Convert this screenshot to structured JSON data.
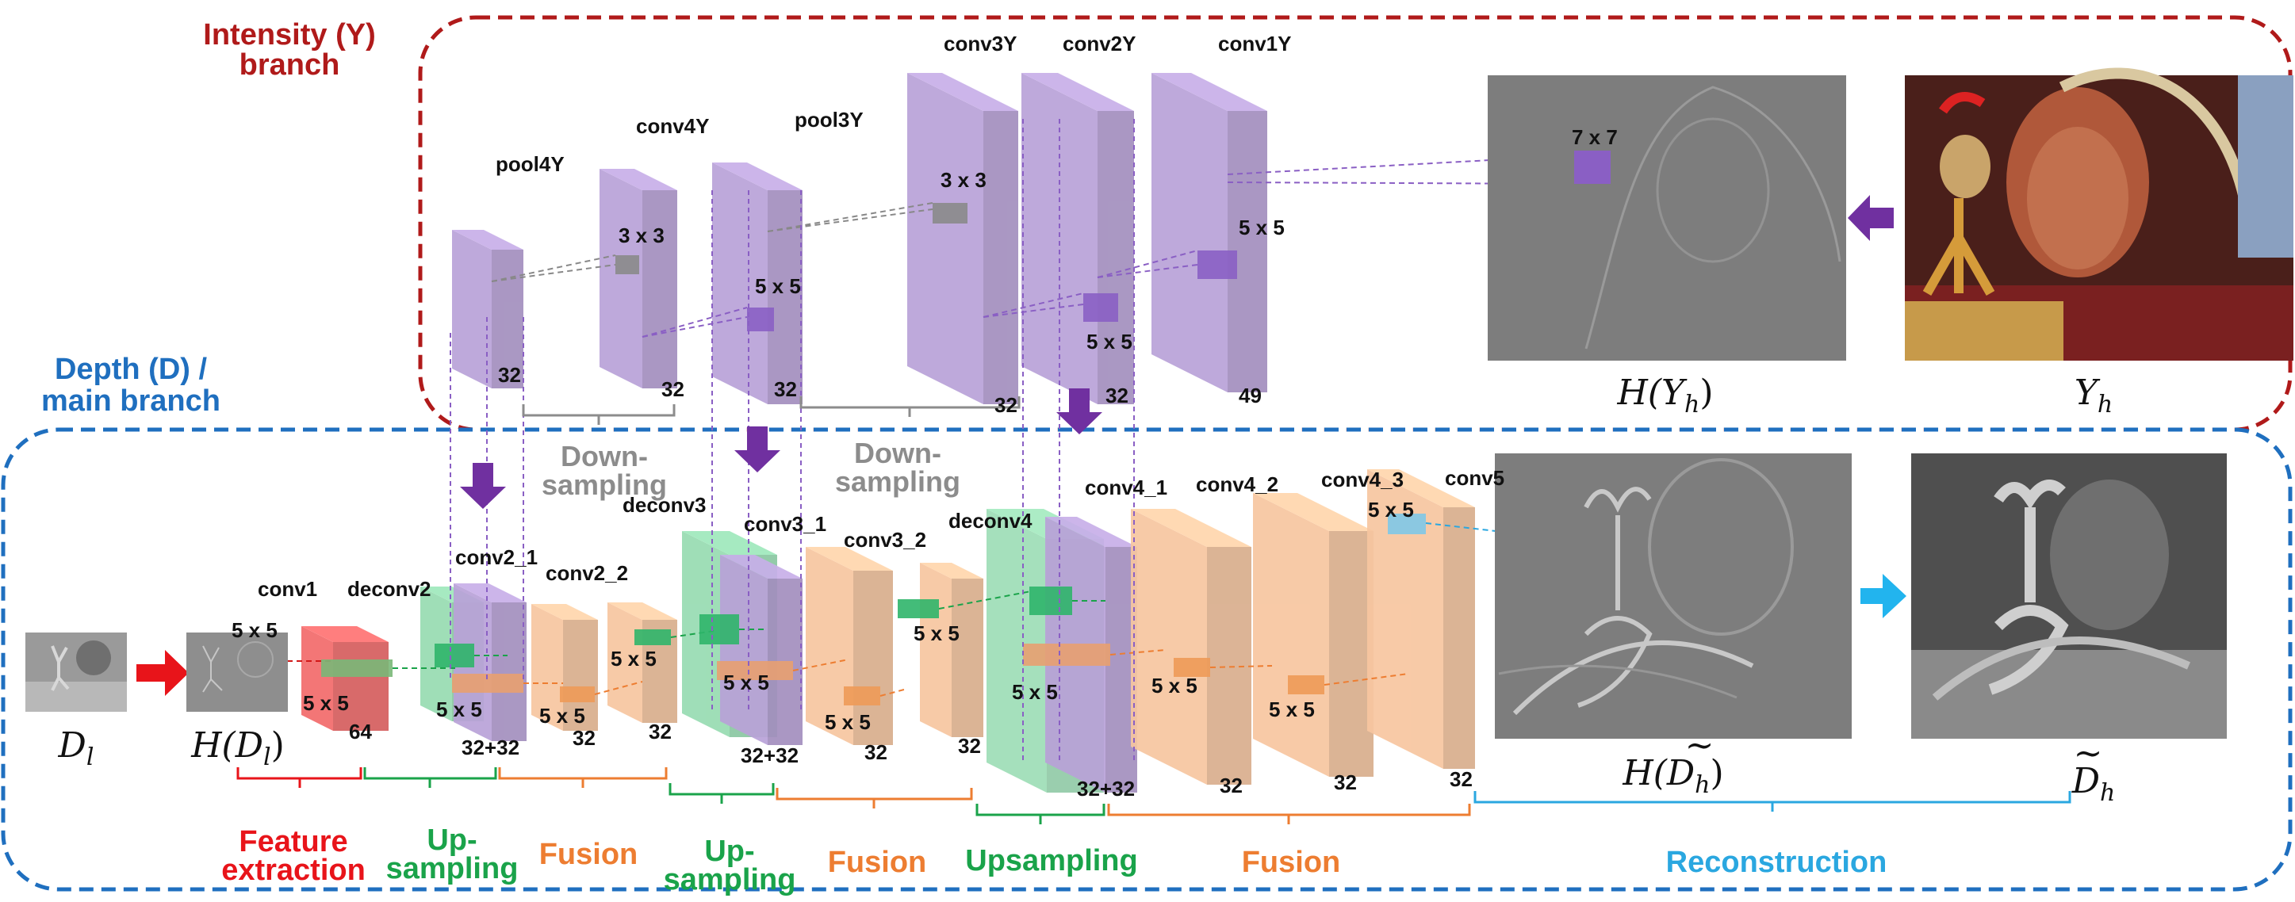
{
  "branches": {
    "intensity": [
      "Intensity (Y)",
      "branch"
    ],
    "depth": [
      "Depth (D) /",
      "main branch"
    ]
  },
  "colors": {
    "red_branch": "#b01a1a",
    "blue_branch": "#1f6fbf",
    "purple": "#b9a2d8",
    "orange": "#f7c6a0",
    "green": "#7fd3a0",
    "red_block": "#f26b6b",
    "cyan": "#5fc0e8",
    "feature_text": "#e8141a",
    "upsampling_text": "#1aa34a",
    "fusion_text": "#ed7d31",
    "reconstruction_text": "#2aa7e0",
    "downsampling_text": "#8c8c8c"
  },
  "layers": {
    "pool4Y": "pool4Y",
    "conv4Y": "conv4Y",
    "pool3Y": "pool3Y",
    "conv3Y": "conv3Y",
    "conv2Y": "conv2Y",
    "conv1Y": "conv1Y",
    "conv1": "conv1",
    "deconv2": "deconv2",
    "conv2_1": "conv2_1",
    "conv2_2": "conv2_2",
    "deconv3": "deconv3",
    "conv3_1": "conv3_1",
    "conv3_2": "conv3_2",
    "deconv4": "deconv4",
    "conv4_1": "conv4_1",
    "conv4_2": "conv4_2",
    "conv4_3": "conv4_3",
    "conv5": "conv5"
  },
  "kernels": {
    "k7": "7 x 7",
    "k5": "5 x 5",
    "k3": "3 x 3"
  },
  "channels": {
    "c32": "32",
    "c49": "49",
    "c64": "64",
    "c3232": "32+32"
  },
  "stages": {
    "downsampling": [
      "Down-",
      "sampling"
    ],
    "feature": [
      "Feature",
      "extraction"
    ],
    "upsampling_split": [
      "Up-",
      "sampling"
    ],
    "fusion": "Fusion",
    "upsampling": "Upsampling",
    "reconstruction": "Reconstruction"
  },
  "images": {
    "Dl": {
      "base": "D",
      "sub": "l"
    },
    "HDl": {
      "pre": "H(",
      "base": "D",
      "sub": "l",
      "post": ")"
    },
    "HYh": {
      "pre": "H(",
      "base": "Y",
      "sub": "h",
      "post": ")"
    },
    "Yh": {
      "base": "Y",
      "sub": "h"
    },
    "HDh": {
      "pre": "H(",
      "base": "D",
      "tilde": "~",
      "sub": "h",
      "post": ")"
    },
    "Dh": {
      "base": "D",
      "tilde": "~",
      "sub": "h"
    }
  }
}
